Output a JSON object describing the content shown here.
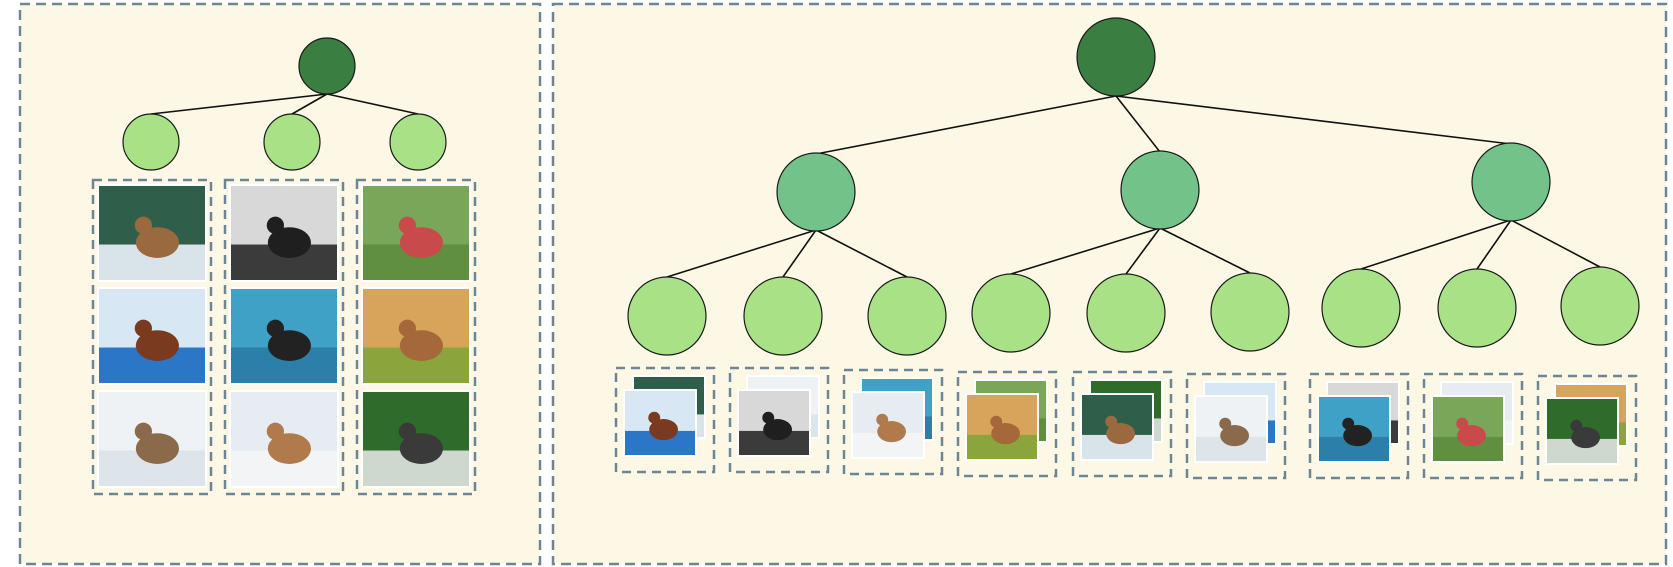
{
  "colors": {
    "panel_fill": "#fdf8e6",
    "panel_border": "#6d8595",
    "root_node": "#3a7e41",
    "mid_node": "#72c28a",
    "leaf_node": "#a9e286",
    "edge": "#111111",
    "node_outline": "#1a1a1a"
  },
  "panels": [
    {
      "name": "two-level-tree-panel",
      "root": "root-node",
      "clusters": [
        {
          "node": "cluster-1",
          "images": [
            "dog-on-surfboard-photo",
            "woman-surfing-with-dog-photo",
            "dog-running-in-snow-photo"
          ]
        },
        {
          "node": "cluster-2",
          "images": [
            "dog-at-beach-bw-photo",
            "dogs-on-paddleboard-photo",
            "dog-in-red-harness-snow-photo"
          ]
        },
        {
          "node": "cluster-3",
          "images": [
            "park-crowd-motorcycle-photo",
            "dog-with-frisbee-photo",
            "park-path-walkers-photo"
          ]
        }
      ]
    },
    {
      "name": "three-level-tree-panel",
      "root": "root-node",
      "groups": [
        {
          "node": "group-1",
          "leaves": [
            {
              "node": "leaf-1",
              "images": [
                "beach-scene-photo",
                "dog-on-surfboard-photo"
              ]
            },
            {
              "node": "leaf-2",
              "images": [
                "house-street-photo",
                "dog-on-street-photo"
              ]
            },
            {
              "node": "leaf-3",
              "images": [
                "snow-scene-photo",
                "dog-in-snow-photo"
              ]
            }
          ]
        },
        {
          "node": "group-2",
          "leaves": [
            {
              "node": "leaf-4",
              "images": [
                "pool-scene-photo",
                "dog-in-red-vest-photo"
              ]
            },
            {
              "node": "leaf-5",
              "images": [
                "indoor-dog-photo",
                "room-with-dog-photo"
              ]
            },
            {
              "node": "leaf-6",
              "images": [
                "dog-on-lawn-photo",
                "bear-statue-photo"
              ]
            }
          ]
        },
        {
          "node": "group-3",
          "leaves": [
            {
              "node": "leaf-7",
              "images": [
                "snow-scene-photo",
                "dog-in-red-vest-photo"
              ]
            },
            {
              "node": "leaf-8",
              "images": [
                "house-scene-photo",
                "dog-in-snow-photo"
              ]
            },
            {
              "node": "leaf-9",
              "images": [
                "park-crowd-photo",
                "dog-with-frisbee-photo"
              ]
            }
          ]
        }
      ]
    }
  ]
}
